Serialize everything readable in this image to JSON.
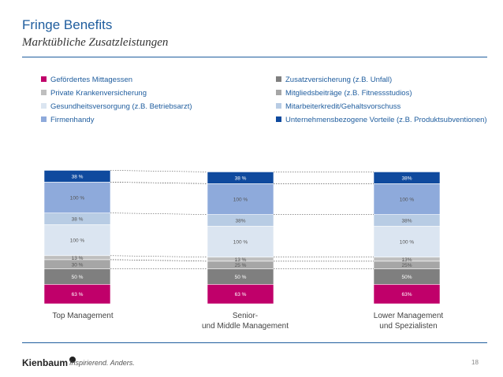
{
  "header": {
    "title": "Fringe Benefits",
    "subtitle": "Marktübliche Zusatzleistungen"
  },
  "footer": {
    "brand": "Kienbaum",
    "tagline": "Inspirierend. Anders.",
    "page_number": "18"
  },
  "chart_data": {
    "type": "bar",
    "stacked": true,
    "categories": [
      "Top Management",
      "Senior-\nund Middle Management",
      "Lower Management\nund Spezialisten"
    ],
    "category_lines": [
      [
        "Top Management"
      ],
      [
        "Senior-",
        "und Middle Management"
      ],
      [
        "Lower Management",
        "und Spezialisten"
      ]
    ],
    "series": [
      {
        "name": "Gefördertes Mittagessen",
        "color": "#c0006a",
        "values": [
          63,
          63,
          63
        ],
        "labels": [
          "63 %",
          "63 %",
          "63%"
        ]
      },
      {
        "name": "Zusatzversicherung (z.B. Unfall)",
        "color": "#7f7f7f",
        "values": [
          50,
          50,
          50
        ],
        "labels": [
          "50 %",
          "50 %",
          "50%"
        ]
      },
      {
        "name": "Mitgliedsbeiträge (z.B. Fitnessstudios)",
        "color": "#a6a6a6",
        "values": [
          30,
          25,
          25
        ],
        "labels": [
          "30 %",
          "25 %",
          "25%"
        ]
      },
      {
        "name": "Private Krankenversicherung",
        "color": "#bfbfbf",
        "values": [
          13,
          13,
          13
        ],
        "labels": [
          "13 %",
          "13 %",
          "13%"
        ]
      },
      {
        "name": "Gesundheitsversorgung (z.B. Betriebsarzt)",
        "color": "#dbe5f1",
        "values": [
          100,
          100,
          100
        ],
        "labels": [
          "100 %",
          "100 %",
          "100 %"
        ]
      },
      {
        "name": "Mitarbeiterkredit/Gehaltsvorschuss",
        "color": "#b8cce4",
        "values": [
          38,
          38,
          38
        ],
        "labels": [
          "38 %",
          "38%",
          "38%"
        ]
      },
      {
        "name": "Firmenhandy",
        "color": "#8eaadb",
        "values": [
          100,
          100,
          100
        ],
        "labels": [
          "100 %",
          "100 %",
          "100 %"
        ]
      },
      {
        "name": "Unternehmensbezogene Vorteile (z.B. Produktsubventionen)",
        "color": "#0f4a9e",
        "values": [
          38,
          38,
          38
        ],
        "labels": [
          "38 %",
          "38 %",
          "38%"
        ]
      }
    ],
    "legend": {
      "placement": "top",
      "left_column": [
        {
          "label": "Gefördertes Mittagessen",
          "color": "#c0006a"
        },
        {
          "label": "Private Krankenversicherung",
          "color": "#bfbfbf"
        },
        {
          "label": "Gesundheitsversorgung (z.B. Betriebsarzt)",
          "color": "#dbe5f1"
        },
        {
          "label": "Firmenhandy",
          "color": "#8eaadb"
        }
      ],
      "right_column": [
        {
          "label": "Zusatzversicherung (z.B. Unfall)",
          "color": "#7f7f7f"
        },
        {
          "label": "Mitgliedsbeiträge (z.B. Fitnessstudios)",
          "color": "#a6a6a6"
        },
        {
          "label": "Mitarbeiterkredit/Gehaltsvorschuss",
          "color": "#b8cce4"
        },
        {
          "label": "Unternehmensbezogene Vorteile (z.B. Produktsubventionen)",
          "color": "#0f4a9e"
        }
      ]
    },
    "connector_lines": "dotted",
    "xlabel": "",
    "ylabel": ""
  }
}
